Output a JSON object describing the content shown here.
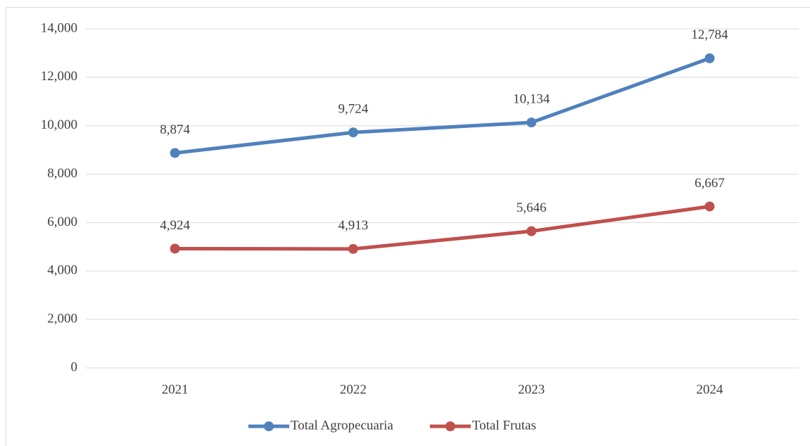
{
  "chart_data": {
    "type": "line",
    "categories": [
      "2021",
      "2022",
      "2023",
      "2024"
    ],
    "series": [
      {
        "name": "Total Agropecuaria",
        "color": "#4f81bd",
        "values": [
          8874,
          9724,
          10134,
          12784
        ],
        "value_labels": [
          "8,874",
          "9,724",
          "10,134",
          "12,784"
        ]
      },
      {
        "name": "Total Frutas",
        "color": "#c0504d",
        "values": [
          4924,
          4913,
          5646,
          6667
        ],
        "value_labels": [
          "4,924",
          "4,913",
          "5,646",
          "6,667"
        ]
      }
    ],
    "ylim": [
      0,
      14000
    ],
    "yticks": [
      0,
      {
        "value": 2000,
        "label": "2,000"
      },
      {
        "value": 4000,
        "label": "4,000"
      },
      {
        "value": 6000,
        "label": "6,000"
      },
      {
        "value": 8000,
        "label": "8,000"
      },
      {
        "value": 10000,
        "label": "10,000"
      },
      {
        "value": 12000,
        "label": "12,000"
      },
      {
        "value": 14000,
        "label": "14,000"
      }
    ],
    "grid": true,
    "legend": "bottom"
  }
}
